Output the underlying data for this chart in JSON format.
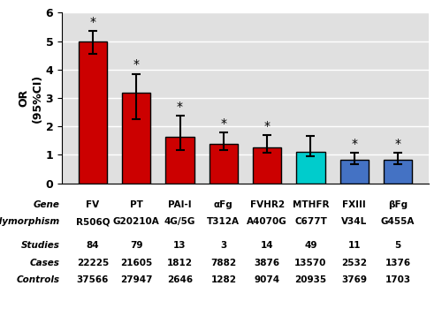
{
  "gene_labels": [
    "FV",
    "PT",
    "PAI-I",
    "αFg",
    "FVHR2",
    "MTHFR",
    "FXIII",
    "βFg"
  ],
  "polymorphism_labels": [
    "R506Q",
    "G20210A",
    "4G/5G",
    "T312A",
    "A4070G",
    "C677T",
    "V34L",
    "G455A"
  ],
  "values": [
    5.0,
    3.2,
    1.62,
    1.4,
    1.25,
    1.1,
    0.82,
    0.82
  ],
  "err_upper": [
    0.35,
    0.65,
    0.75,
    0.38,
    0.45,
    0.55,
    0.25,
    0.25
  ],
  "err_lower": [
    0.45,
    0.95,
    0.45,
    0.22,
    0.18,
    0.15,
    0.15,
    0.15
  ],
  "bar_colors": [
    "#cc0000",
    "#cc0000",
    "#cc0000",
    "#cc0000",
    "#cc0000",
    "#00cccc",
    "#4472c4",
    "#4472c4"
  ],
  "significant": [
    true,
    true,
    true,
    true,
    true,
    false,
    true,
    true
  ],
  "studies": [
    "84",
    "79",
    "13",
    "3",
    "14",
    "49",
    "11",
    "5"
  ],
  "cases": [
    "22225",
    "21605",
    "1812",
    "7882",
    "3876",
    "13570",
    "2532",
    "1376"
  ],
  "controls": [
    "37566",
    "27947",
    "2646",
    "1282",
    "9074",
    "20935",
    "3769",
    "1703"
  ],
  "ylabel": "OR\n(95%CI)",
  "ylim": [
    0,
    6
  ],
  "yticks": [
    0,
    1,
    2,
    3,
    4,
    5,
    6
  ],
  "bg_color": "#e0e0e0",
  "row_header_labels": [
    "Gene",
    "Polymorphism",
    "Studies",
    "Cases",
    "Controls"
  ],
  "bar_width": 0.65
}
